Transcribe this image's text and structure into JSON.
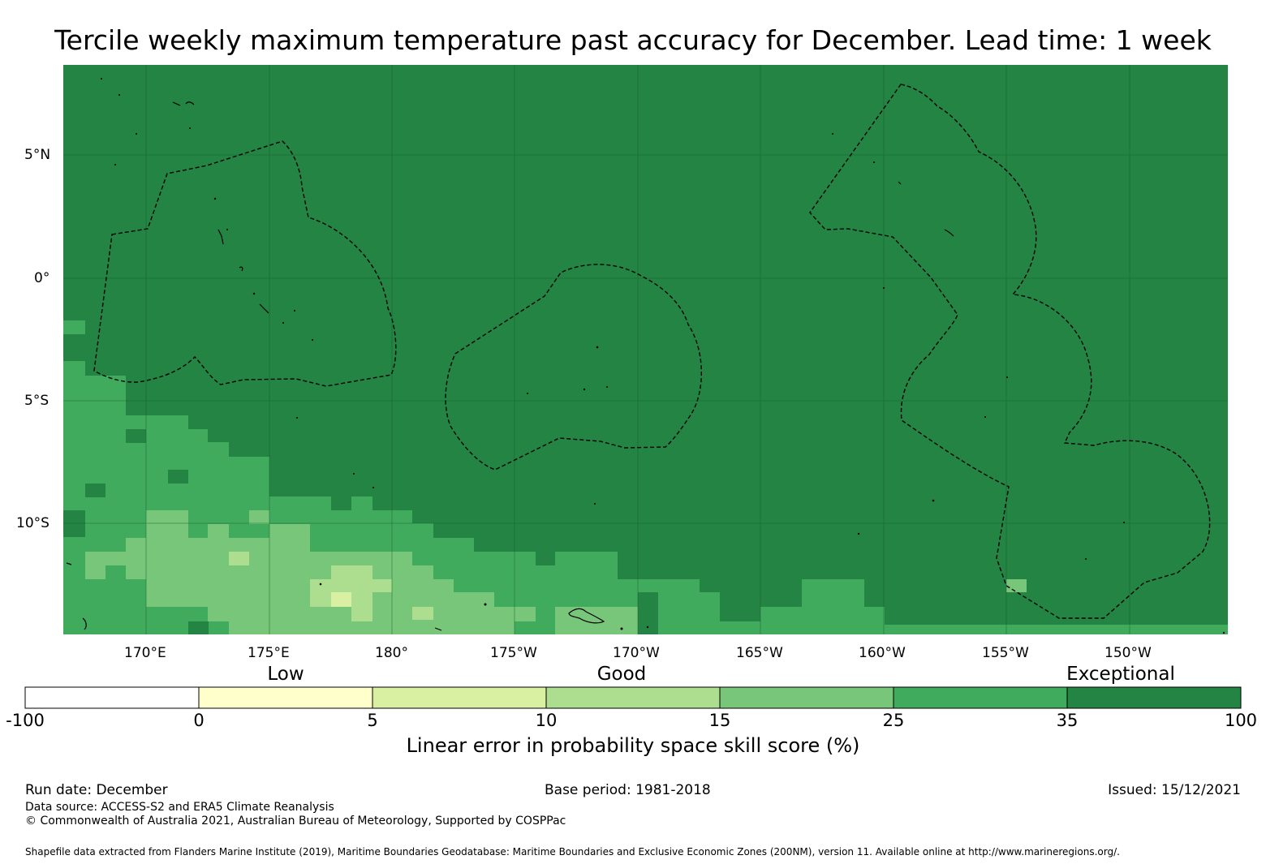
{
  "title": "Tercile weekly maximum temperature past accuracy for December. Lead time: 1 week",
  "axes": {
    "lon_labels": [
      "170°E",
      "175°E",
      "180°",
      "175°W",
      "170°W",
      "165°W",
      "160°W",
      "155°W",
      "150°W"
    ],
    "lat_labels": [
      "5°N",
      "0°",
      "5°S",
      "10°S"
    ]
  },
  "colorbar": {
    "category_labels": [
      "Low",
      "Good",
      "Exceptional"
    ],
    "ticks": [
      "-100",
      "0",
      "5",
      "10",
      "15",
      "25",
      "35",
      "100"
    ],
    "colors": [
      "#ffffff",
      "#ffffcc",
      "#d9f0a3",
      "#addd8e",
      "#78c679",
      "#41ab5d",
      "#238443"
    ],
    "title": "Linear error in probability space skill score (%)"
  },
  "footer": {
    "run_date": "Run date: December",
    "base_period": "Base period: 1981-2018",
    "issued": "Issued: 15/12/2021",
    "data_source": "Data source: ACCESS-S2 and ERA5 Climate Reanalysis",
    "copyright": "© Commonwealth of Australia 2021, Australian Bureau of Meteorology, Supported by COSPPac",
    "shapefile": "Shapefile data extracted from Flanders Marine Institute (2019), Maritime Boundaries Geodatabase: Maritime Boundaries and Exclusive Economic Zones (200NM), version 11. Available online at http://www.marineregions.org/."
  },
  "map_colors": {
    "exceptional": "#238443",
    "skill_25_35": "#41ab5d",
    "skill_15_25": "#78c679",
    "skill_10_15": "#addd8e",
    "skill_5_10": "#d9f0a3"
  }
}
